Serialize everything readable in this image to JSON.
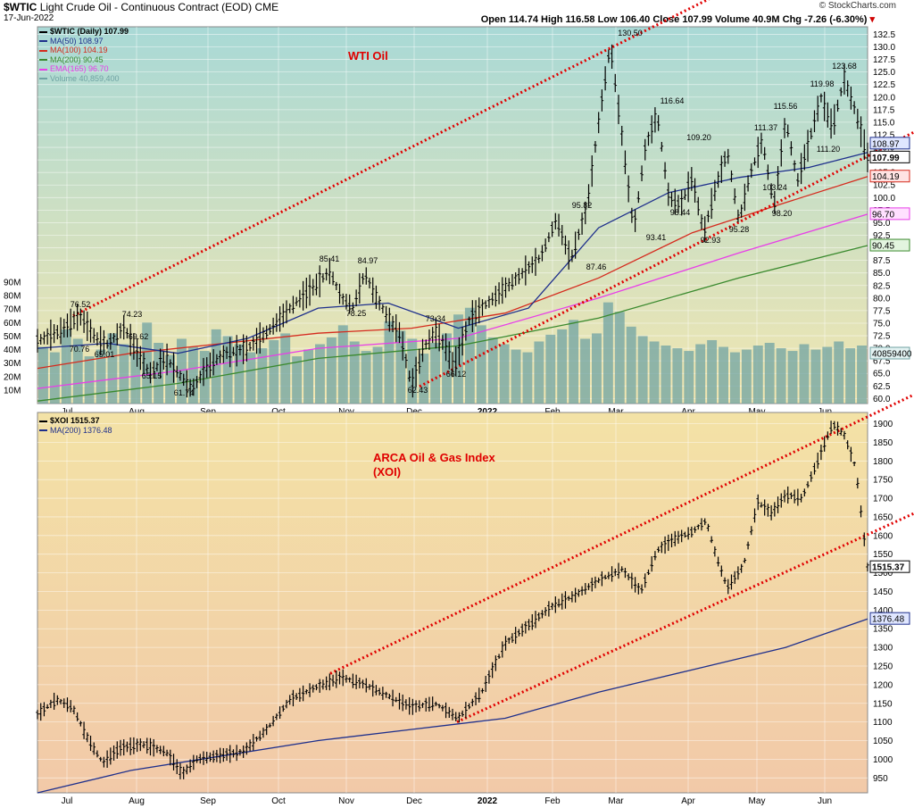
{
  "header": {
    "symbol": "$WTIC",
    "title": "Light Crude Oil - Continuous Contract (EOD)",
    "exchange": "CME",
    "date": "17-Jun-2022",
    "ohlc_text": "Open 114.74  High 116.58  Low 106.40  Close 107.99  Volume 40.9M  Chg -7.26 (-6.30%)",
    "arrow": "▾",
    "brand": "© StockCharts.com"
  },
  "colors": {
    "top_bg_start": "#a9d9d6",
    "top_bg_end": "#f2e6b0",
    "bottom_bg_start": "#f3e2a6",
    "bottom_bg_end": "#f2c9a8",
    "ma50": "#1e2f8c",
    "ma100": "#d52b1e",
    "ma200": "#3a8a2e",
    "ema165": "#e83ee8",
    "volume": "#6fa3a3",
    "trend": "#e00000",
    "price": "#000000"
  },
  "chart_data": [
    {
      "type": "line",
      "title": "WTI Oil",
      "legend": [
        {
          "name": "$WTIC (Daily) 107.99",
          "color": "#000000"
        },
        {
          "name": "MA(50) 108.97",
          "color": "#1e2f8c"
        },
        {
          "name": "MA(100) 104.19",
          "color": "#d52b1e"
        },
        {
          "name": "MA(200) 90.45",
          "color": "#3a8a2e"
        },
        {
          "name": "EMA(165) 96.70",
          "color": "#e83ee8"
        },
        {
          "name": "Volume 40,859,400",
          "color": "#6fa3a3"
        }
      ],
      "x_ticks": [
        "Jul",
        "Aug",
        "Sep",
        "Oct",
        "Nov",
        "Dec",
        "2022",
        "Feb",
        "Mar",
        "Apr",
        "May",
        "Jun"
      ],
      "y_ticks": [
        "132.5",
        "130.0",
        "127.5",
        "125.0",
        "122.5",
        "120.0",
        "117.5",
        "115.0",
        "112.5",
        "110.0",
        "107.5",
        "105.0",
        "102.5",
        "100.0",
        "97.5",
        "95.0",
        "92.5",
        "90.0",
        "87.5",
        "85.0",
        "82.5",
        "80.0",
        "77.5",
        "75.0",
        "72.5",
        "70.0",
        "67.5",
        "65.0",
        "62.5",
        "60.0"
      ],
      "ylim": [
        59,
        134
      ],
      "volume_ticks": [
        "90M",
        "80M",
        "70M",
        "60M",
        "50M",
        "40M",
        "30M",
        "20M",
        "10M"
      ],
      "volume_max": 90,
      "end_labels": [
        "107.99",
        "108.97",
        "104.19",
        "96.70",
        "90.45",
        "40859400"
      ],
      "annotations": [
        "76.52",
        "74.23",
        "70.76",
        "69.62",
        "65.01",
        "65.15",
        "61.74",
        "85.41",
        "84.97",
        "78.25",
        "73.34",
        "62.43",
        "66.12",
        "95.82",
        "87.46",
        "130.50",
        "116.64",
        "98.44",
        "93.41",
        "109.20",
        "92.93",
        "95.28",
        "111.37",
        "115.56",
        "103.24",
        "98.20",
        "119.98",
        "111.20",
        "123.68"
      ],
      "price_points": [
        [
          0,
          71.5
        ],
        [
          10,
          73.5
        ],
        [
          18,
          76.52
        ],
        [
          25,
          72
        ],
        [
          30,
          70.76
        ],
        [
          37,
          74.23
        ],
        [
          42,
          69.62
        ],
        [
          48,
          65.01
        ],
        [
          55,
          68
        ],
        [
          60,
          65.15
        ],
        [
          66,
          61.74
        ],
        [
          72,
          66
        ],
        [
          80,
          69
        ],
        [
          90,
          70
        ],
        [
          100,
          74
        ],
        [
          110,
          79
        ],
        [
          120,
          83
        ],
        [
          125,
          85.41
        ],
        [
          130,
          80
        ],
        [
          135,
          78.25
        ],
        [
          140,
          84.97
        ],
        [
          145,
          80
        ],
        [
          150,
          76
        ],
        [
          155,
          73
        ],
        [
          160,
          62.43
        ],
        [
          165,
          70
        ],
        [
          170,
          73.34
        ],
        [
          175,
          70
        ],
        [
          178,
          66.12
        ],
        [
          185,
          76
        ],
        [
          195,
          80
        ],
        [
          205,
          84
        ],
        [
          215,
          88
        ],
        [
          222,
          95.82
        ],
        [
          228,
          87.46
        ],
        [
          235,
          98
        ],
        [
          240,
          115
        ],
        [
          245,
          130.5
        ],
        [
          250,
          112
        ],
        [
          255,
          93.41
        ],
        [
          260,
          110
        ],
        [
          265,
          116.64
        ],
        [
          270,
          100
        ],
        [
          275,
          98.44
        ],
        [
          280,
          104
        ],
        [
          285,
          92.93
        ],
        [
          290,
          102
        ],
        [
          295,
          109.2
        ],
        [
          300,
          95.28
        ],
        [
          305,
          105
        ],
        [
          310,
          111.37
        ],
        [
          315,
          98.2
        ],
        [
          320,
          115.56
        ],
        [
          325,
          103.24
        ],
        [
          330,
          111.2
        ],
        [
          335,
          119.98
        ],
        [
          340,
          114
        ],
        [
          345,
          123.68
        ],
        [
          350,
          117
        ],
        [
          355,
          107.99
        ]
      ],
      "ma50_points": [
        [
          0,
          70
        ],
        [
          30,
          71
        ],
        [
          60,
          69
        ],
        [
          90,
          72
        ],
        [
          120,
          78
        ],
        [
          150,
          79
        ],
        [
          180,
          74
        ],
        [
          210,
          78
        ],
        [
          240,
          94
        ],
        [
          270,
          101
        ],
        [
          300,
          104
        ],
        [
          330,
          106
        ],
        [
          355,
          108.97
        ]
      ],
      "ma100_points": [
        [
          0,
          66
        ],
        [
          40,
          69
        ],
        [
          80,
          71
        ],
        [
          120,
          73
        ],
        [
          160,
          74
        ],
        [
          200,
          77
        ],
        [
          240,
          84
        ],
        [
          280,
          93
        ],
        [
          320,
          99
        ],
        [
          355,
          104.19
        ]
      ],
      "ma200_points": [
        [
          0,
          59.5
        ],
        [
          60,
          63
        ],
        [
          120,
          68
        ],
        [
          180,
          70.5
        ],
        [
          240,
          76
        ],
        [
          300,
          84
        ],
        [
          355,
          90.45
        ]
      ],
      "ema165_points": [
        [
          0,
          62
        ],
        [
          60,
          65.5
        ],
        [
          120,
          70
        ],
        [
          180,
          72
        ],
        [
          240,
          80
        ],
        [
          300,
          89
        ],
        [
          355,
          96.7
        ]
      ],
      "volume_values": [
        42,
        38,
        55,
        48,
        35,
        40,
        52,
        44,
        38,
        60,
        45,
        36,
        48,
        42,
        39,
        55,
        50,
        44,
        38,
        41,
        47,
        52,
        35,
        40,
        44,
        49,
        58,
        46,
        39,
        42,
        61,
        54,
        48,
        37,
        45,
        52,
        66,
        71,
        58,
        49,
        44,
        40,
        38,
        46,
        51,
        55,
        62,
        48,
        52,
        75,
        68,
        57,
        50,
        46,
        43,
        41,
        39,
        44,
        47,
        42,
        38,
        40,
        43,
        45,
        41,
        39,
        44,
        40,
        42,
        46,
        41,
        43
      ]
    },
    {
      "type": "line",
      "title": "ARCA Oil & Gas Index (XOI)",
      "legend": [
        {
          "name": "$XOI 1515.37",
          "color": "#000000"
        },
        {
          "name": "MA(200) 1376.48",
          "color": "#1e2f8c"
        }
      ],
      "x_ticks": [
        "Jul",
        "Aug",
        "Sep",
        "Oct",
        "Nov",
        "Dec",
        "2022",
        "Feb",
        "Mar",
        "Apr",
        "May",
        "Jun"
      ],
      "y_ticks": [
        "1900",
        "1850",
        "1800",
        "1750",
        "1700",
        "1650",
        "1600",
        "1550",
        "1500",
        "1450",
        "1400",
        "1350",
        "1300",
        "1250",
        "1200",
        "1150",
        "1100",
        "1050",
        "1000",
        "950"
      ],
      "ylim": [
        910,
        1930
      ],
      "end_labels": [
        "1515.37",
        "1376.48"
      ],
      "price_points": [
        [
          0,
          1120
        ],
        [
          8,
          1160
        ],
        [
          15,
          1140
        ],
        [
          22,
          1050
        ],
        [
          28,
          990
        ],
        [
          35,
          1030
        ],
        [
          45,
          1040
        ],
        [
          55,
          1020
        ],
        [
          62,
          960
        ],
        [
          68,
          1000
        ],
        [
          78,
          1010
        ],
        [
          88,
          1020
        ],
        [
          98,
          1080
        ],
        [
          108,
          1160
        ],
        [
          118,
          1190
        ],
        [
          130,
          1220
        ],
        [
          140,
          1200
        ],
        [
          150,
          1170
        ],
        [
          160,
          1140
        ],
        [
          170,
          1150
        ],
        [
          180,
          1110
        ],
        [
          190,
          1180
        ],
        [
          200,
          1310
        ],
        [
          210,
          1360
        ],
        [
          220,
          1410
        ],
        [
          230,
          1440
        ],
        [
          240,
          1480
        ],
        [
          250,
          1510
        ],
        [
          258,
          1450
        ],
        [
          265,
          1560
        ],
        [
          272,
          1590
        ],
        [
          280,
          1610
        ],
        [
          286,
          1640
        ],
        [
          290,
          1550
        ],
        [
          295,
          1460
        ],
        [
          302,
          1520
        ],
        [
          308,
          1690
        ],
        [
          314,
          1660
        ],
        [
          320,
          1710
        ],
        [
          327,
          1700
        ],
        [
          333,
          1790
        ],
        [
          340,
          1900
        ],
        [
          345,
          1870
        ],
        [
          350,
          1780
        ],
        [
          353,
          1620
        ],
        [
          355,
          1515.37
        ]
      ],
      "ma200_points": [
        [
          0,
          910
        ],
        [
          40,
          970
        ],
        [
          80,
          1010
        ],
        [
          120,
          1050
        ],
        [
          160,
          1080
        ],
        [
          200,
          1110
        ],
        [
          240,
          1180
        ],
        [
          280,
          1240
        ],
        [
          320,
          1300
        ],
        [
          355,
          1376.48
        ]
      ]
    }
  ]
}
